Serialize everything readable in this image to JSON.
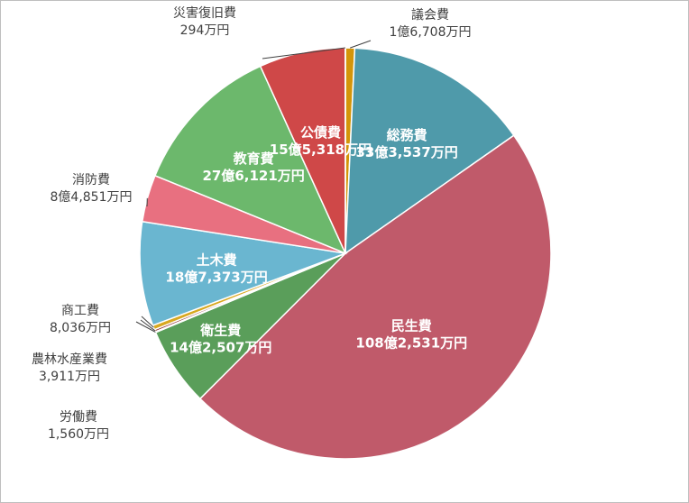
{
  "chart_data": {
    "type": "pie",
    "unit": "万円",
    "slices": [
      {
        "name": "議会費",
        "value": 16708,
        "label": "1億6,708万円",
        "color": "#d4950a",
        "label_style": "outside"
      },
      {
        "name": "総務費",
        "value": 333537,
        "label": "33億3,537万円",
        "color": "#4f9aaa",
        "label_style": "inside"
      },
      {
        "name": "民生費",
        "value": 1082531,
        "label": "108億2,531万円",
        "color": "#c05a6a",
        "label_style": "inside"
      },
      {
        "name": "衛生費",
        "value": 142507,
        "label": "14億2,507万円",
        "color": "#5a9e5a",
        "label_style": "inside"
      },
      {
        "name": "労働費",
        "value": 1560,
        "label": "1,560万円",
        "color": "#e0a040",
        "label_style": "outside"
      },
      {
        "name": "農林水産業費",
        "value": 3911,
        "label": "3,911万円",
        "color": "#8a2a2a",
        "label_style": "outside"
      },
      {
        "name": "商工費",
        "value": 8036,
        "label": "8,036万円",
        "color": "#d8a820",
        "label_style": "outside"
      },
      {
        "name": "土木費",
        "value": 187373,
        "label": "18億7,373万円",
        "color": "#6ab6d0",
        "label_style": "inside"
      },
      {
        "name": "消防費",
        "value": 84851,
        "label": "8億4,851万円",
        "color": "#e87080",
        "label_style": "outside"
      },
      {
        "name": "教育費",
        "value": 276121,
        "label": "27億6,121万円",
        "color": "#6cb86c",
        "label_style": "inside"
      },
      {
        "name": "公債費",
        "value": 155318,
        "label": "15億5,318万円",
        "color": "#cf4848",
        "label_style": "inside"
      },
      {
        "name": "災害復旧費",
        "value": 294,
        "label": "294万円",
        "color": "#e07830",
        "label_style": "outside"
      }
    ]
  }
}
